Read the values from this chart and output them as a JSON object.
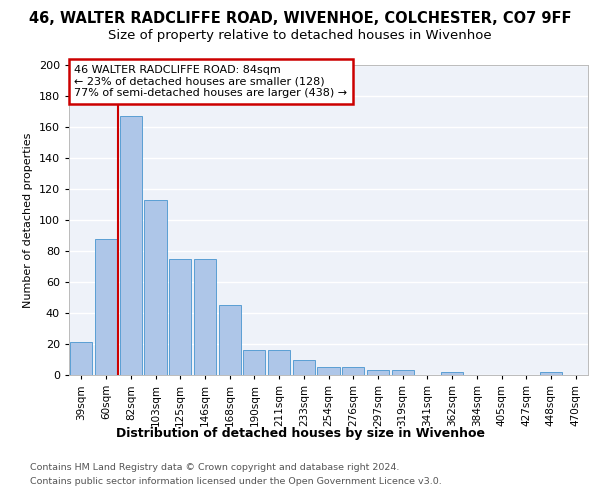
{
  "title_line1": "46, WALTER RADCLIFFE ROAD, WIVENHOE, COLCHESTER, CO7 9FF",
  "title_line2": "Size of property relative to detached houses in Wivenhoe",
  "xlabel": "Distribution of detached houses by size in Wivenhoe",
  "ylabel": "Number of detached properties",
  "categories": [
    "39sqm",
    "60sqm",
    "82sqm",
    "103sqm",
    "125sqm",
    "146sqm",
    "168sqm",
    "190sqm",
    "211sqm",
    "233sqm",
    "254sqm",
    "276sqm",
    "297sqm",
    "319sqm",
    "341sqm",
    "362sqm",
    "384sqm",
    "405sqm",
    "427sqm",
    "448sqm",
    "470sqm"
  ],
  "values": [
    21,
    88,
    167,
    113,
    75,
    75,
    45,
    16,
    16,
    10,
    5,
    5,
    3,
    3,
    0,
    2,
    0,
    0,
    0,
    2,
    0
  ],
  "bar_color": "#aec6e8",
  "bar_edge_color": "#5a9fd4",
  "red_line_x": 1.5,
  "annotation_text": "46 WALTER RADCLIFFE ROAD: 84sqm\n← 23% of detached houses are smaller (128)\n77% of semi-detached houses are larger (438) →",
  "annotation_box_color": "#ffffff",
  "annotation_box_edge": "#cc0000",
  "ylim": [
    0,
    200
  ],
  "yticks": [
    0,
    20,
    40,
    60,
    80,
    100,
    120,
    140,
    160,
    180,
    200
  ],
  "background_color": "#eef2f9",
  "grid_color": "#ffffff",
  "footer_line1": "Contains HM Land Registry data © Crown copyright and database right 2024.",
  "footer_line2": "Contains public sector information licensed under the Open Government Licence v3.0.",
  "title_fontsize": 10.5,
  "subtitle_fontsize": 9.5
}
